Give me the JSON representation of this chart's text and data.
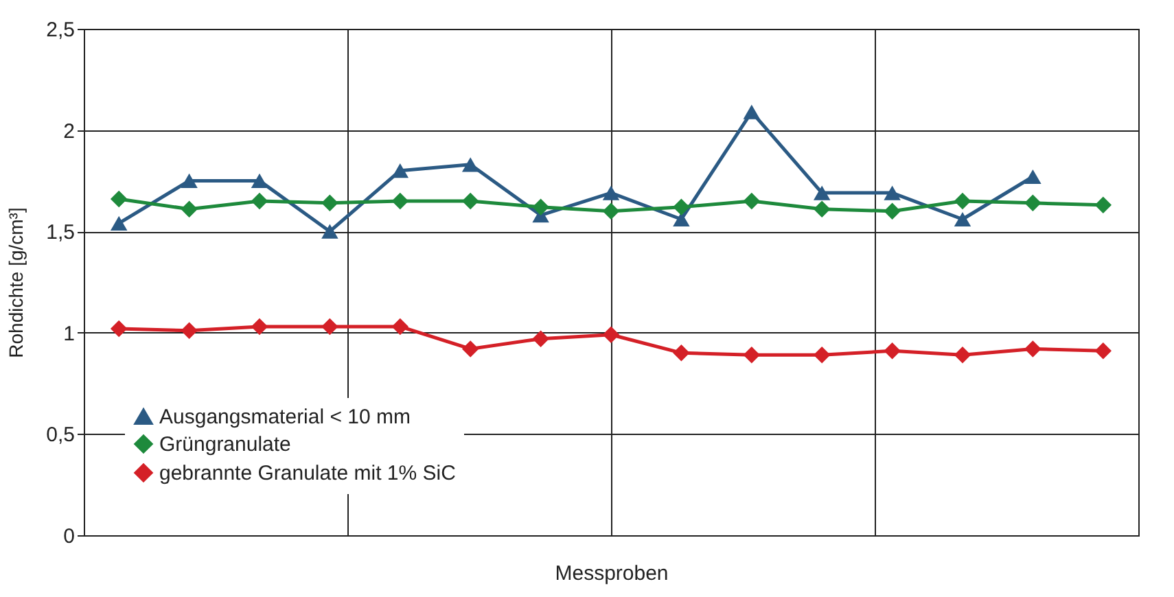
{
  "chart_data": {
    "type": "line",
    "xlabel": "Messproben",
    "ylabel": "Rohdichte [g/cm³]",
    "categories": [
      null,
      null,
      null,
      null,
      null,
      null,
      null,
      null,
      null,
      null,
      null,
      null,
      null,
      null,
      null
    ],
    "series": [
      {
        "name": "Ausgangsmaterial < 10 mm",
        "color": "#2b5a84",
        "marker": "triangle",
        "values": [
          1.54,
          1.75,
          1.75,
          1.5,
          1.8,
          1.83,
          1.58,
          1.69,
          1.56,
          2.09,
          1.69,
          1.69,
          1.56,
          1.77,
          null
        ]
      },
      {
        "name": "Grüngranulate",
        "color": "#1e8a3c",
        "marker": "diamond",
        "values": [
          1.66,
          1.61,
          1.65,
          1.64,
          1.65,
          1.65,
          1.62,
          1.6,
          1.62,
          1.65,
          1.61,
          1.6,
          1.65,
          1.64,
          1.63
        ]
      },
      {
        "name": "gebrannte Granulate mit 1% SiC",
        "color": "#d42027",
        "marker": "diamond",
        "values": [
          1.02,
          1.01,
          1.03,
          1.03,
          1.03,
          0.92,
          0.97,
          0.99,
          0.9,
          0.89,
          0.89,
          0.91,
          0.89,
          0.92,
          0.91
        ]
      }
    ],
    "ylim": [
      0,
      2.5
    ],
    "yticks": [
      0,
      {
        "value": 0.5,
        "label": "0,5"
      },
      1,
      {
        "value": 1.5,
        "label": "1,5"
      },
      2,
      {
        "value": 2.5,
        "label": "2,5"
      }
    ],
    "grid": true,
    "legend": "bottom left",
    "line_style": "solid"
  }
}
